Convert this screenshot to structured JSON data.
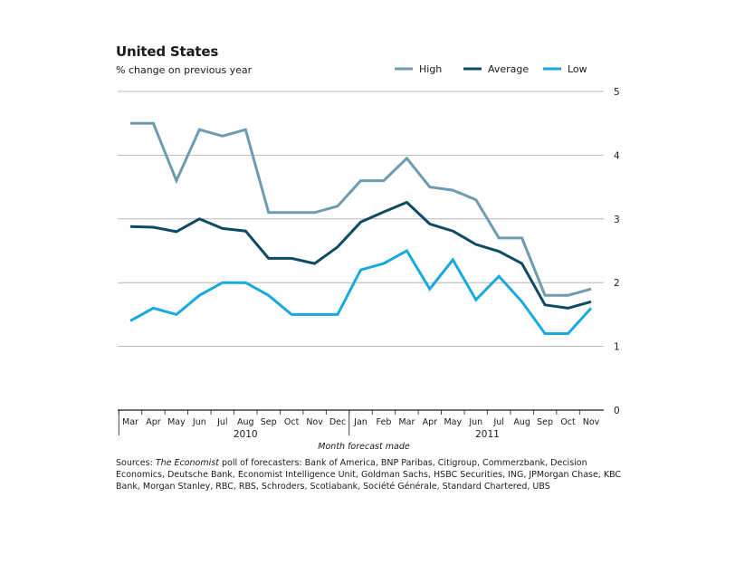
{
  "chart_data": {
    "type": "line",
    "title": "United States",
    "subtitle": "% change on previous year",
    "xlabel": "Month forecast made",
    "ylabel": "",
    "ylim": [
      0,
      5
    ],
    "yticks": [
      0,
      1,
      2,
      3,
      4,
      5
    ],
    "y_axis_side": "right",
    "grid": true,
    "legend_position": "top-right",
    "categories": [
      "Mar",
      "Apr",
      "May",
      "Jun",
      "Jul",
      "Aug",
      "Sep",
      "Oct",
      "Nov",
      "Dec",
      "Jan",
      "Feb",
      "Mar",
      "Apr",
      "May",
      "Jun",
      "Jul",
      "Aug",
      "Sep",
      "Oct",
      "Nov"
    ],
    "year_labels": [
      {
        "label": "2010",
        "category_index": 5
      },
      {
        "label": "2011",
        "category_index": 15.5
      }
    ],
    "series": [
      {
        "name": "High",
        "color": "#6e9bb0",
        "values": [
          4.5,
          4.5,
          3.6,
          4.4,
          4.3,
          4.4,
          3.1,
          3.1,
          3.1,
          3.2,
          3.6,
          3.6,
          3.95,
          3.5,
          3.45,
          3.3,
          2.7,
          2.7,
          1.8,
          1.8,
          1.9
        ]
      },
      {
        "name": "Average",
        "color": "#0e4a64",
        "values": [
          2.88,
          2.87,
          2.8,
          3.0,
          2.85,
          2.81,
          2.38,
          2.38,
          2.3,
          2.56,
          2.95,
          3.11,
          3.26,
          2.92,
          2.81,
          2.6,
          2.49,
          2.3,
          1.65,
          1.6,
          1.7
        ]
      },
      {
        "name": "Low",
        "color": "#19a9dc",
        "values": [
          1.4,
          1.6,
          1.5,
          1.8,
          2.0,
          2.0,
          1.8,
          1.5,
          1.5,
          1.5,
          2.2,
          2.3,
          2.5,
          1.9,
          2.36,
          1.73,
          2.1,
          1.7,
          1.2,
          1.2,
          1.6
        ]
      }
    ]
  },
  "sources": {
    "label": "Sources: ",
    "italic": "The Economist",
    "text": " poll of forecasters: Bank of America, BNP Paribas, Citigroup, Commerzbank, Decision Economics, Deutsche Bank, Economist Intelligence Unit, Goldman Sachs, HSBC Securities, ING, JPMorgan Chase, KBC Bank, Morgan Stanley, RBC, RBS, Schroders, Scotiabank, Société Générale, Standard Chartered, UBS"
  }
}
